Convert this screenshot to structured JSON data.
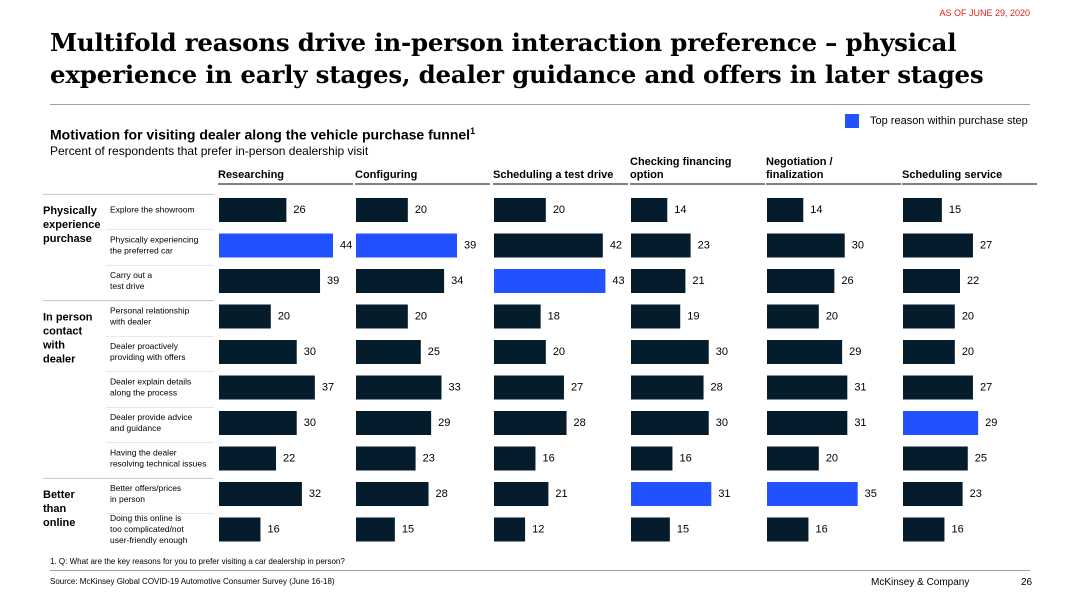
{
  "header": {
    "date_stamp": "AS OF JUNE 29, 2020",
    "title_line1": "Multifold reasons drive in-person interaction preference – physical",
    "title_line2": "experience in early stages, dealer guidance and offers in later stages"
  },
  "legend": {
    "label": "Top reason within purchase step",
    "color": "#2251ff"
  },
  "colors": {
    "bar": "#051c2c",
    "highlight": "#2251ff"
  },
  "chart_data": {
    "type": "bar",
    "orientation": "horizontal",
    "title": "Motivation for visiting dealer along the vehicle purchase funnel",
    "title_footnote_marker": "1",
    "subtitle": "Percent of respondents that prefer in-person dealership visit",
    "groups": [
      {
        "label": "Physically experience purchase",
        "lines": [
          "Physically",
          "experience",
          "purchase"
        ],
        "rows": [
          0,
          1,
          2
        ]
      },
      {
        "label": "In person contact with dealer",
        "lines": [
          "In person",
          "contact",
          "with",
          "dealer"
        ],
        "rows": [
          3,
          4,
          5,
          6,
          7
        ]
      },
      {
        "label": "Better than online",
        "lines": [
          "Better",
          "than",
          "online"
        ],
        "rows": [
          8,
          9
        ]
      }
    ],
    "categories": [
      {
        "lines": [
          "Explore the showroom"
        ]
      },
      {
        "lines": [
          "Physically experiencing",
          " the preferred car"
        ]
      },
      {
        "lines": [
          "Carry out a",
          "test drive"
        ]
      },
      {
        "lines": [
          "Personal relationship",
          "with dealer"
        ]
      },
      {
        "lines": [
          "Dealer proactively",
          "providing with offers"
        ]
      },
      {
        "lines": [
          "Dealer explain details",
          "along the process"
        ]
      },
      {
        "lines": [
          "Dealer provide advice",
          "and guidance"
        ]
      },
      {
        "lines": [
          "Having the dealer",
          "resolving technical issues"
        ]
      },
      {
        "lines": [
          "Better offers/prices",
          "in person"
        ]
      },
      {
        "lines": [
          "Doing this online is",
          "too complicated/not",
          "user-friendly enough"
        ]
      }
    ],
    "series": [
      {
        "name": "Researching",
        "header_lines": [
          "Researching"
        ],
        "values": [
          26,
          44,
          39,
          20,
          30,
          37,
          30,
          22,
          32,
          16
        ],
        "highlight_index": 1
      },
      {
        "name": "Configuring",
        "header_lines": [
          "Configuring"
        ],
        "values": [
          20,
          39,
          34,
          20,
          25,
          33,
          29,
          23,
          28,
          15
        ],
        "highlight_index": 1
      },
      {
        "name": "Scheduling a test drive",
        "header_lines": [
          "Scheduling a test drive"
        ],
        "values": [
          20,
          42,
          43,
          18,
          20,
          27,
          28,
          16,
          21,
          12
        ],
        "highlight_index": 2
      },
      {
        "name": "Checking financing option",
        "header_lines": [
          "Checking financing",
          "option"
        ],
        "values": [
          14,
          23,
          21,
          19,
          30,
          28,
          30,
          16,
          31,
          15
        ],
        "highlight_index": 8
      },
      {
        "name": "Negotiation / finalization",
        "header_lines": [
          "Negotiation /",
          "finalization"
        ],
        "values": [
          14,
          30,
          26,
          20,
          29,
          31,
          31,
          20,
          35,
          16
        ],
        "highlight_index": 8
      },
      {
        "name": "Scheduling service",
        "header_lines": [
          "Scheduling service"
        ],
        "values": [
          15,
          27,
          22,
          20,
          20,
          27,
          29,
          25,
          23,
          16
        ],
        "highlight_index": 6
      }
    ],
    "grid": false
  },
  "footer": {
    "footnote": "1.    Q: What are the key reasons for you to prefer visiting a car dealership in person?",
    "source": "Source: McKinsey Global COVID-19 Automotive Consumer Survey (June 16-18)",
    "company": "McKinsey & Company",
    "page_number": "26"
  }
}
